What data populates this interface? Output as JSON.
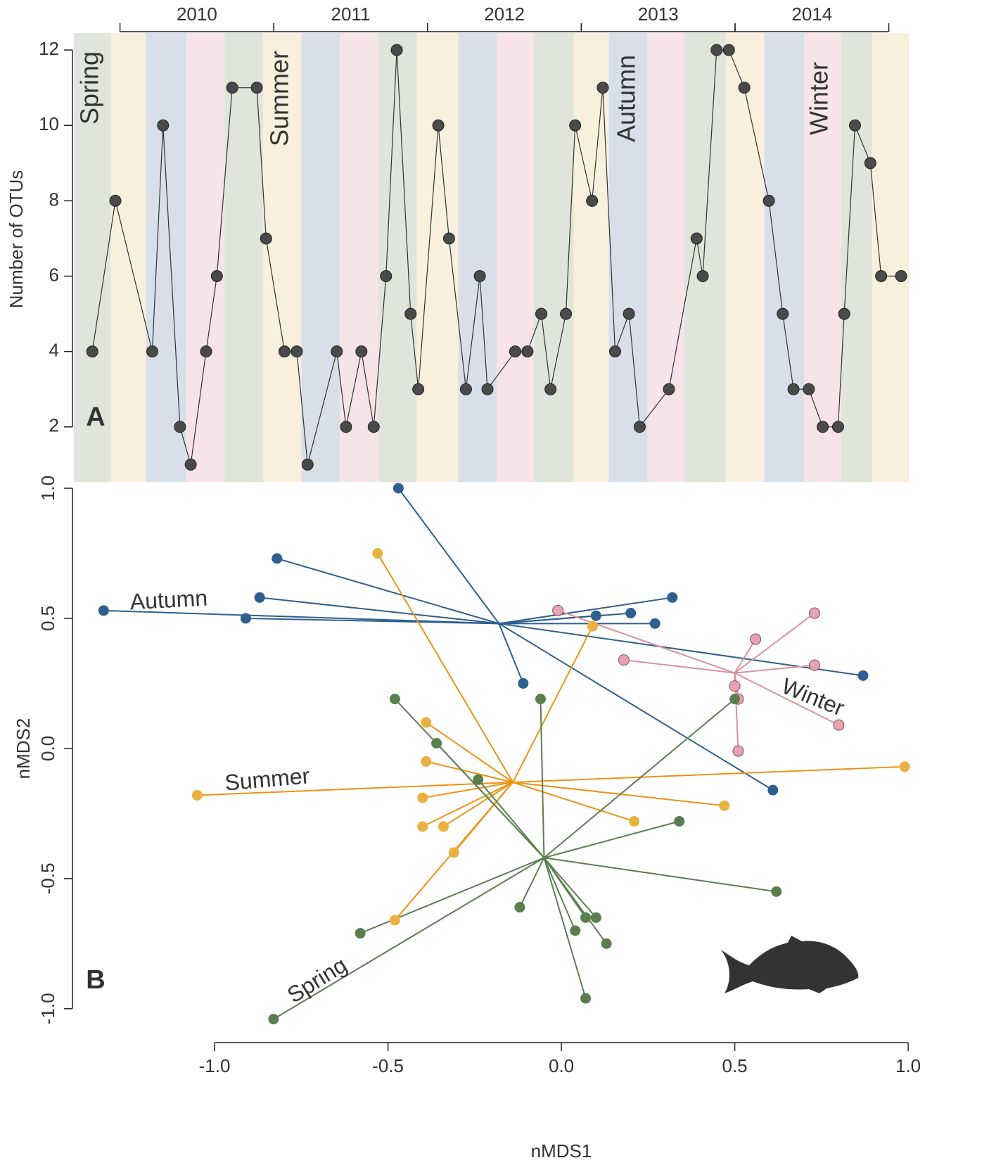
{
  "chart_data": [
    {
      "type": "line",
      "panel_label": "A",
      "y_label": "Number of OTUs",
      "color": "#333333",
      "marker_color": "#4a4a4a",
      "x": [
        2009.82,
        2009.97,
        2010.21,
        2010.28,
        2010.39,
        2010.46,
        2010.56,
        2010.63,
        2010.73,
        2010.89,
        2010.95,
        2011.07,
        2011.15,
        2011.22,
        2011.41,
        2011.47,
        2011.57,
        2011.65,
        2011.73,
        2011.8,
        2011.89,
        2011.94,
        2012.07,
        2012.14,
        2012.25,
        2012.34,
        2012.39,
        2012.57,
        2012.65,
        2012.74,
        2012.8,
        2012.9,
        2012.96,
        2013.07,
        2013.14,
        2013.22,
        2013.31,
        2013.38,
        2013.57,
        2013.75,
        2013.79,
        2013.88,
        2013.96,
        2014.06,
        2014.22,
        2014.31,
        2014.38,
        2014.48,
        2014.57,
        2014.67,
        2014.71,
        2014.78,
        2014.88,
        2014.95,
        2015.08
      ],
      "values": [
        4,
        8,
        4,
        10,
        2,
        1,
        4,
        6,
        11,
        11,
        7,
        4,
        4,
        1,
        4,
        2,
        4,
        2,
        6,
        12,
        5,
        3,
        10,
        7,
        3,
        6,
        3,
        4,
        4,
        5,
        3,
        5,
        10,
        8,
        11,
        4,
        5,
        2,
        3,
        7,
        6,
        12,
        12,
        11,
        8,
        5,
        3,
        3,
        2,
        2,
        5,
        10,
        9,
        6,
        6
      ],
      "xlim": [
        2009.7,
        2015.13
      ],
      "ylim": [
        0.54,
        12.45
      ],
      "yticks": [
        2,
        4,
        6,
        8,
        10,
        12
      ],
      "periods": [
        {
          "label": "2010",
          "start": 2010,
          "end": 2011
        },
        {
          "label": "2011",
          "start": 2011,
          "end": 2012
        },
        {
          "label": "2012",
          "start": 2012,
          "end": 2013
        },
        {
          "label": "2013",
          "start": 2013,
          "end": 2014
        },
        {
          "label": "2014",
          "start": 2014,
          "end": 2015
        }
      ],
      "band_edges": [
        2009.7,
        2009.94,
        2010.17,
        2010.43,
        2010.68,
        2010.93,
        2011.18,
        2011.43,
        2011.68,
        2011.93,
        2012.2,
        2012.45,
        2012.69,
        2012.95,
        2013.18,
        2013.43,
        2013.67,
        2013.94,
        2014.19,
        2014.45,
        2014.69,
        2014.89,
        2015.13
      ],
      "band_colors": [
        "#dfe5da",
        "#f8efdc",
        "#d8dfe8",
        "#f6e4e8",
        "#dfe5da",
        "#f8efdc",
        "#d8dfe8",
        "#f6e4e8",
        "#dfe5da",
        "#f8efdc",
        "#d8dfe8",
        "#f6e4e8",
        "#dfe5da",
        "#f8efdc",
        "#d8dfe8",
        "#f6e4e8",
        "#dfe5da",
        "#f8efdc",
        "#d8dfe8",
        "#f6e4e8",
        "#dfe5da",
        "#f8efdc"
      ],
      "annotations": [
        "Spring",
        "Summer",
        "Autumn",
        "Winter"
      ]
    },
    {
      "type": "spider",
      "panel_label": "B",
      "x_label": "nMDS1",
      "y_label": "nMDS2",
      "xlim": [
        -1.42,
        1.01
      ],
      "ylim": [
        -1.06,
        1.0
      ],
      "xticks": [
        {
          "value": -1,
          "label": "-1.0"
        },
        -0.5,
        {
          "value": 0,
          "label": "0.0"
        },
        0.5,
        {
          "value": 1,
          "label": "1.0"
        }
      ],
      "yticks": [
        {
          "value": -1,
          "label": "-1.0"
        },
        -0.5,
        {
          "value": 0,
          "label": "0.0"
        },
        0.5,
        {
          "value": 1,
          "label": "1.0"
        }
      ],
      "groups": [
        {
          "name": "Autumn",
          "color": "#2e5f8f",
          "point_color": "#2e5f8f",
          "centroid_x": -0.18,
          "centroid_y": 0.48,
          "x": [
            -0.47,
            -0.82,
            -0.87,
            -1.32,
            -0.91,
            0.32,
            0.2,
            0.1,
            0.27,
            -0.11,
            0.87,
            0.61
          ],
          "y": [
            1.0,
            0.73,
            0.58,
            0.53,
            0.5,
            0.58,
            0.52,
            0.51,
            0.48,
            0.25,
            0.28,
            -0.16
          ]
        },
        {
          "name": "Winter",
          "color": "#d9919f",
          "point_color": "#e6a3b1",
          "centroid_x": 0.5,
          "centroid_y": 0.29,
          "x": [
            -0.01,
            0.73,
            0.56,
            0.18,
            0.73,
            0.5,
            0.51,
            0.8,
            0.51
          ],
          "y": [
            0.53,
            0.52,
            0.42,
            0.34,
            0.32,
            0.24,
            0.19,
            0.09,
            -0.01
          ]
        },
        {
          "name": "Summer",
          "color": "#ec9314",
          "point_color": "#e9b141",
          "centroid_x": -0.14,
          "centroid_y": -0.13,
          "x": [
            -0.53,
            0.09,
            -0.39,
            -0.39,
            -1.05,
            -0.4,
            0.99,
            0.47,
            0.21,
            -0.4,
            -0.34,
            -0.31,
            -0.48
          ],
          "y": [
            0.75,
            0.47,
            0.1,
            -0.05,
            -0.18,
            -0.19,
            -0.07,
            -0.22,
            -0.28,
            -0.3,
            -0.3,
            -0.4,
            -0.66
          ]
        },
        {
          "name": "Spring",
          "color": "#5b7e4f",
          "point_color": "#5b7e4f",
          "centroid_x": -0.05,
          "centroid_y": -0.42,
          "x": [
            -0.48,
            -0.06,
            0.5,
            -0.36,
            -0.24,
            0.34,
            0.62,
            -0.12,
            0.07,
            0.1,
            0.04,
            0.13,
            -0.58,
            0.07,
            -0.83
          ],
          "y": [
            0.19,
            0.19,
            0.19,
            0.02,
            -0.12,
            -0.28,
            -0.55,
            -0.61,
            -0.65,
            -0.65,
            -0.7,
            -0.75,
            -0.71,
            -0.96,
            -1.04
          ]
        }
      ]
    }
  ]
}
